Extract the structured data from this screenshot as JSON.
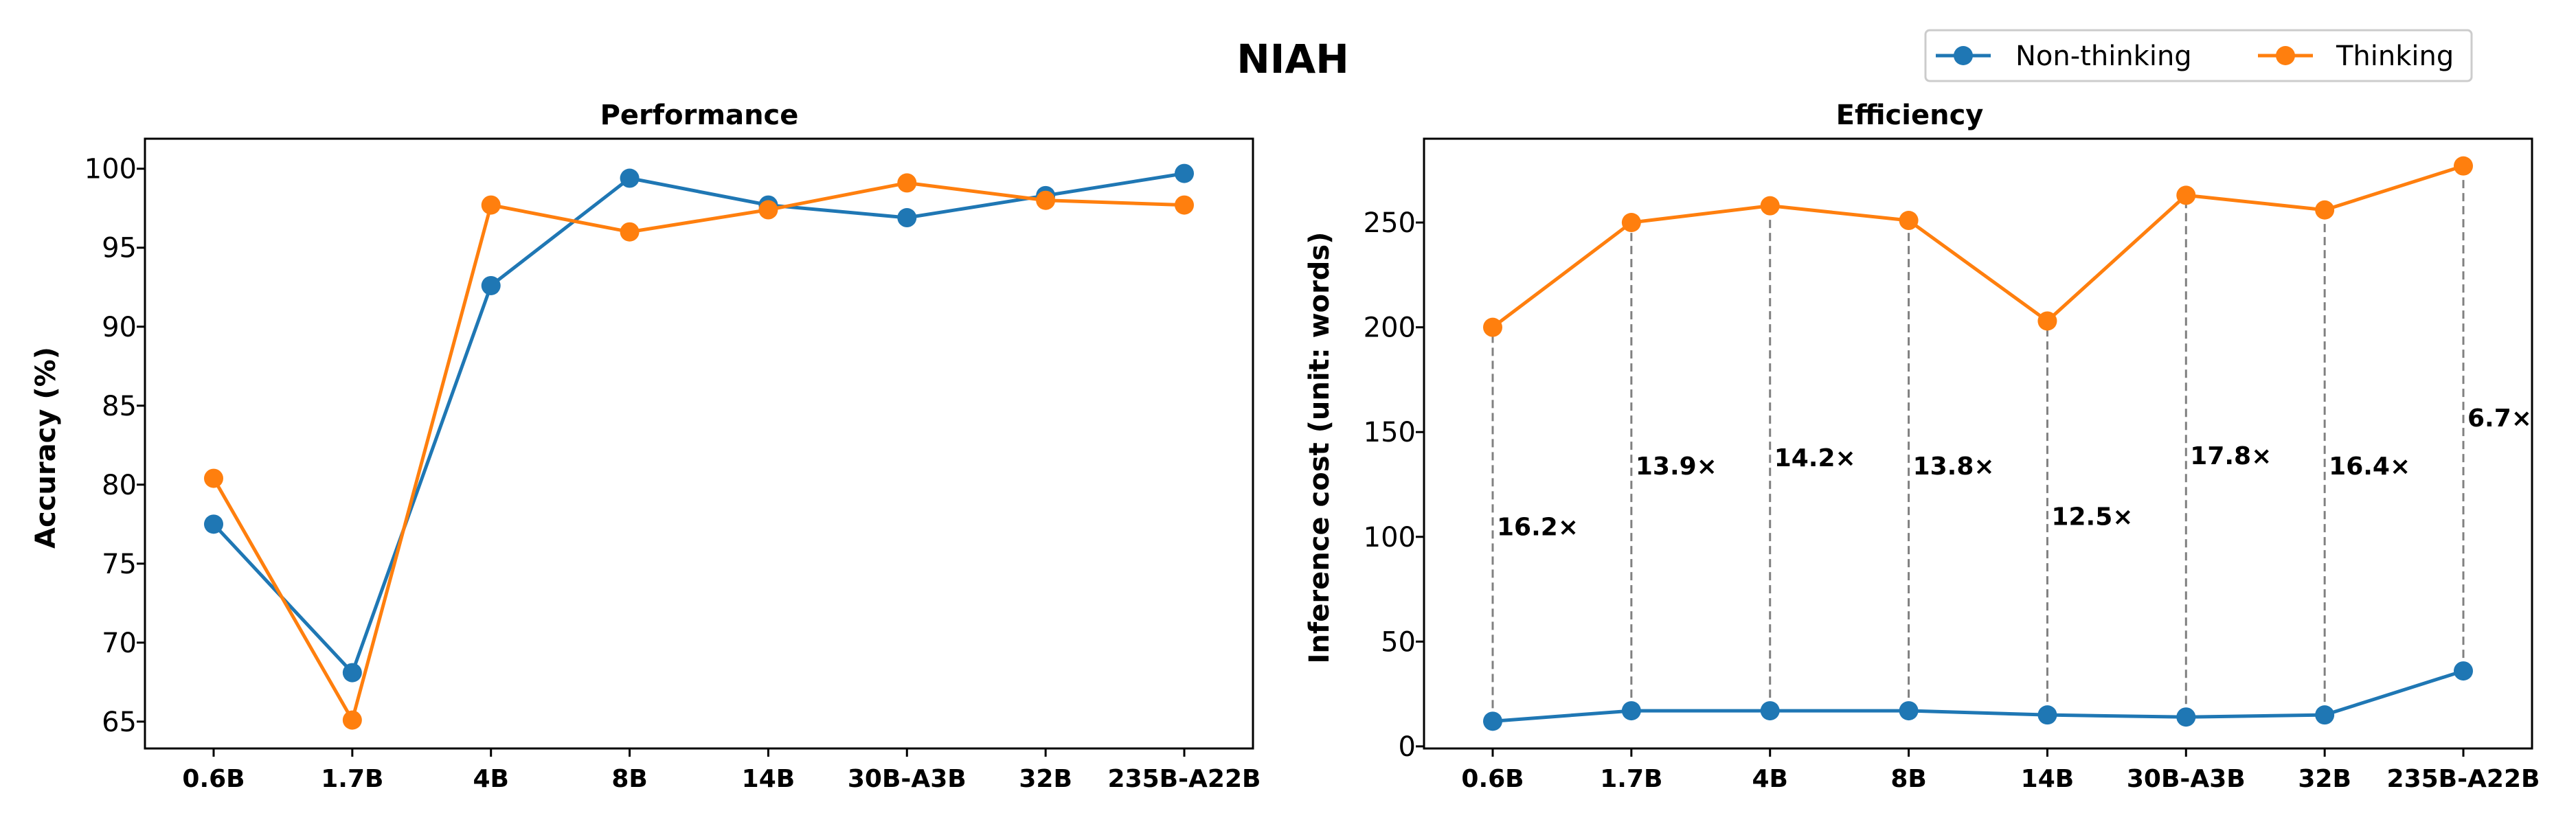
{
  "figure_title": "NIAH",
  "legend": [
    "Non-thinking",
    "Thinking"
  ],
  "colors": {
    "non_thinking": "#1f77b4",
    "thinking": "#ff7f0e",
    "guide": "#808080"
  },
  "chart_data": [
    {
      "type": "line",
      "title": "Performance",
      "xlabel": "",
      "ylabel": "Accuracy (%)",
      "categories": [
        "0.6B",
        "1.7B",
        "4B",
        "8B",
        "14B",
        "30B-A3B",
        "32B",
        "235B-A22B"
      ],
      "ylim": [
        63.3,
        101.9
      ],
      "yticks": [
        65,
        70,
        75,
        80,
        85,
        90,
        95,
        100
      ],
      "grid": false,
      "series": [
        {
          "name": "Non-thinking",
          "values": [
            77.5,
            68.1,
            92.6,
            99.4,
            97.7,
            96.9,
            98.3,
            99.7
          ]
        },
        {
          "name": "Thinking",
          "values": [
            80.4,
            65.1,
            97.7,
            96.0,
            97.4,
            99.1,
            98.0,
            97.7
          ]
        }
      ]
    },
    {
      "type": "line",
      "title": "Efficiency",
      "xlabel": "",
      "ylabel": "Inference cost (unit: words)",
      "categories": [
        "0.6B",
        "1.7B",
        "4B",
        "8B",
        "14B",
        "30B-A3B",
        "32B",
        "235B-A22B"
      ],
      "ylim": [
        -1,
        290
      ],
      "yticks": [
        0,
        50,
        100,
        150,
        200,
        250
      ],
      "grid": false,
      "series": [
        {
          "name": "Non-thinking",
          "values": [
            12,
            17,
            17,
            17,
            15,
            14,
            15,
            36
          ]
        },
        {
          "name": "Thinking",
          "values": [
            200,
            250,
            258,
            251,
            203,
            263,
            256,
            277
          ]
        }
      ],
      "ratio_labels": [
        "16.2×",
        "13.9×",
        "14.2×",
        "13.8×",
        "12.5×",
        "17.8×",
        "16.4×",
        "6.7×"
      ],
      "ratio_label_values": [
        105,
        134,
        138,
        134,
        110,
        139,
        134,
        157
      ]
    }
  ]
}
